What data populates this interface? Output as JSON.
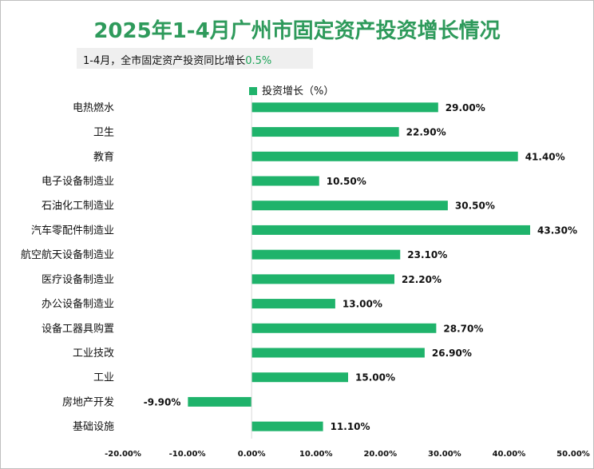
{
  "title": "2025年1-4月广州市固定资产投资增长情况",
  "subtitle": {
    "text": "1-4月，全市固定资产投资同比增长",
    "value": "0.5%"
  },
  "colors": {
    "bar": "#1fb36b",
    "title": "#2e9a5b"
  },
  "chart_data": {
    "type": "bar",
    "orientation": "horizontal",
    "title": "2025年1-4月广州市固定资产投资增长情况",
    "legend": "投资增长（%）",
    "legend_position": "top",
    "categories": [
      "电热燃水",
      "卫生",
      "教育",
      "电子设备制造业",
      "石油化工制造业",
      "汽车零配件制造业",
      "航空航天设备制造业",
      "医疗设备制造业",
      "办公设备制造业",
      "设备工器具购置",
      "工业技改",
      "工业",
      "房地产开发",
      "基础设施"
    ],
    "series": [
      {
        "name": "投资增长（%）",
        "values": [
          29.0,
          22.9,
          41.4,
          10.5,
          30.5,
          43.3,
          23.1,
          22.2,
          13.0,
          28.7,
          26.9,
          15.0,
          -9.9,
          11.1
        ],
        "labels": [
          "29.00%",
          "22.90%",
          "41.40%",
          "10.50%",
          "30.50%",
          "43.30%",
          "23.10%",
          "22.20%",
          "13.00%",
          "28.70%",
          "26.90%",
          "15.00%",
          "-9.90%",
          "11.10%"
        ]
      }
    ],
    "xlim": [
      -20,
      50
    ],
    "xticks": [
      "-20.00%",
      "-10.00%",
      "0.00%",
      "10.00%",
      "20.00%",
      "30.00%",
      "40.00%",
      "50.00%"
    ],
    "grid": false
  }
}
